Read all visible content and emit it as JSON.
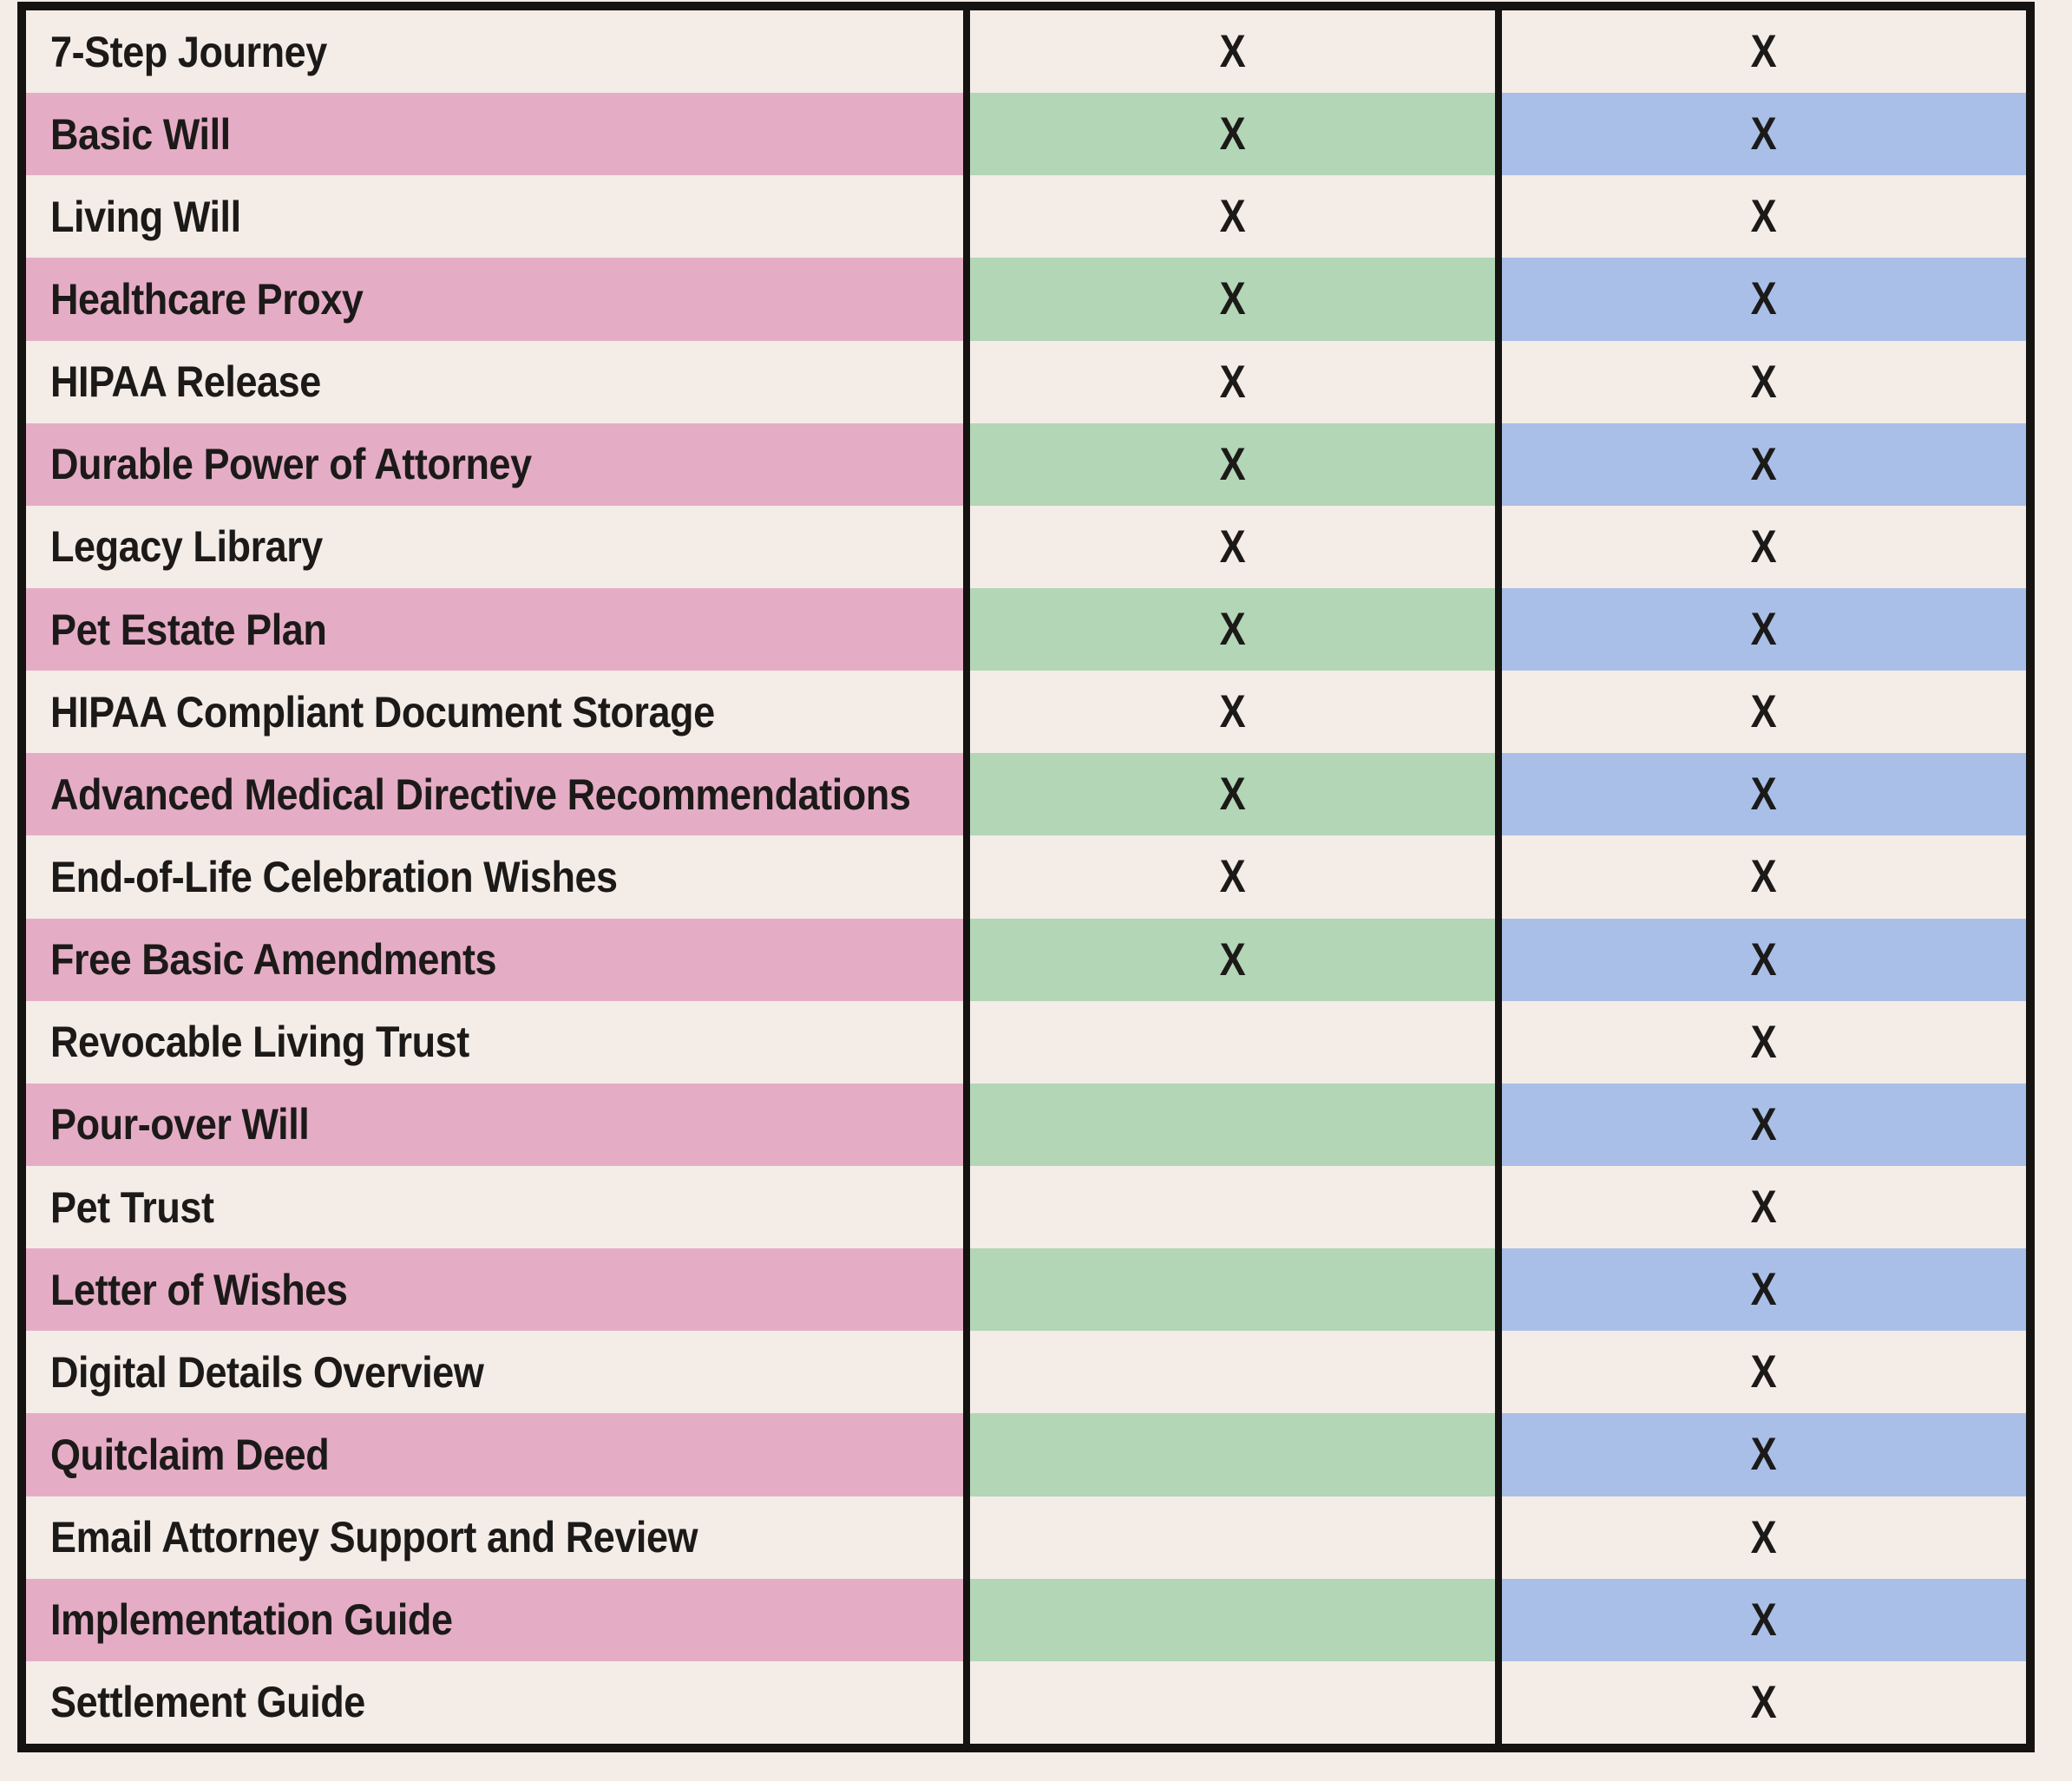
{
  "colors": {
    "background_cream": "#f4ece6",
    "feature_column_pink": "#e5adc5",
    "middle_column_green": "#b2d6b6",
    "right_column_blue": "#a9bfe7",
    "border_black": "#141312",
    "text_ink": "#1c1a19"
  },
  "table": {
    "x_mark": "X",
    "rows": [
      {
        "label": "7-Step Journey",
        "mid": "X",
        "right": "X"
      },
      {
        "label": "Basic Will",
        "mid": "X",
        "right": "X"
      },
      {
        "label": "Living Will",
        "mid": "X",
        "right": "X"
      },
      {
        "label": "Healthcare Proxy",
        "mid": "X",
        "right": "X"
      },
      {
        "label": "HIPAA Release",
        "mid": "X",
        "right": "X"
      },
      {
        "label": "Durable Power of Attorney",
        "mid": "X",
        "right": "X"
      },
      {
        "label": "Legacy Library",
        "mid": "X",
        "right": "X"
      },
      {
        "label": "Pet Estate Plan",
        "mid": "X",
        "right": "X"
      },
      {
        "label": "HIPAA Compliant Document Storage",
        "mid": "X",
        "right": "X"
      },
      {
        "label": "Advanced Medical Directive Recommendations",
        "mid": "X",
        "right": "X"
      },
      {
        "label": "End-of-Life Celebration Wishes",
        "mid": "X",
        "right": "X"
      },
      {
        "label": "Free Basic Amendments",
        "mid": "X",
        "right": "X"
      },
      {
        "label": "Revocable Living Trust",
        "mid": "",
        "right": "X"
      },
      {
        "label": "Pour-over Will",
        "mid": "",
        "right": "X"
      },
      {
        "label": "Pet Trust",
        "mid": "",
        "right": "X"
      },
      {
        "label": "Letter of Wishes",
        "mid": "",
        "right": "X"
      },
      {
        "label": "Digital Details Overview",
        "mid": "",
        "right": "X"
      },
      {
        "label": "Quitclaim Deed",
        "mid": "",
        "right": "X"
      },
      {
        "label": "Email Attorney Support and Review",
        "mid": "",
        "right": "X"
      },
      {
        "label": "Implementation Guide",
        "mid": "",
        "right": "X"
      },
      {
        "label": "Settlement Guide",
        "mid": "",
        "right": "X"
      }
    ]
  }
}
